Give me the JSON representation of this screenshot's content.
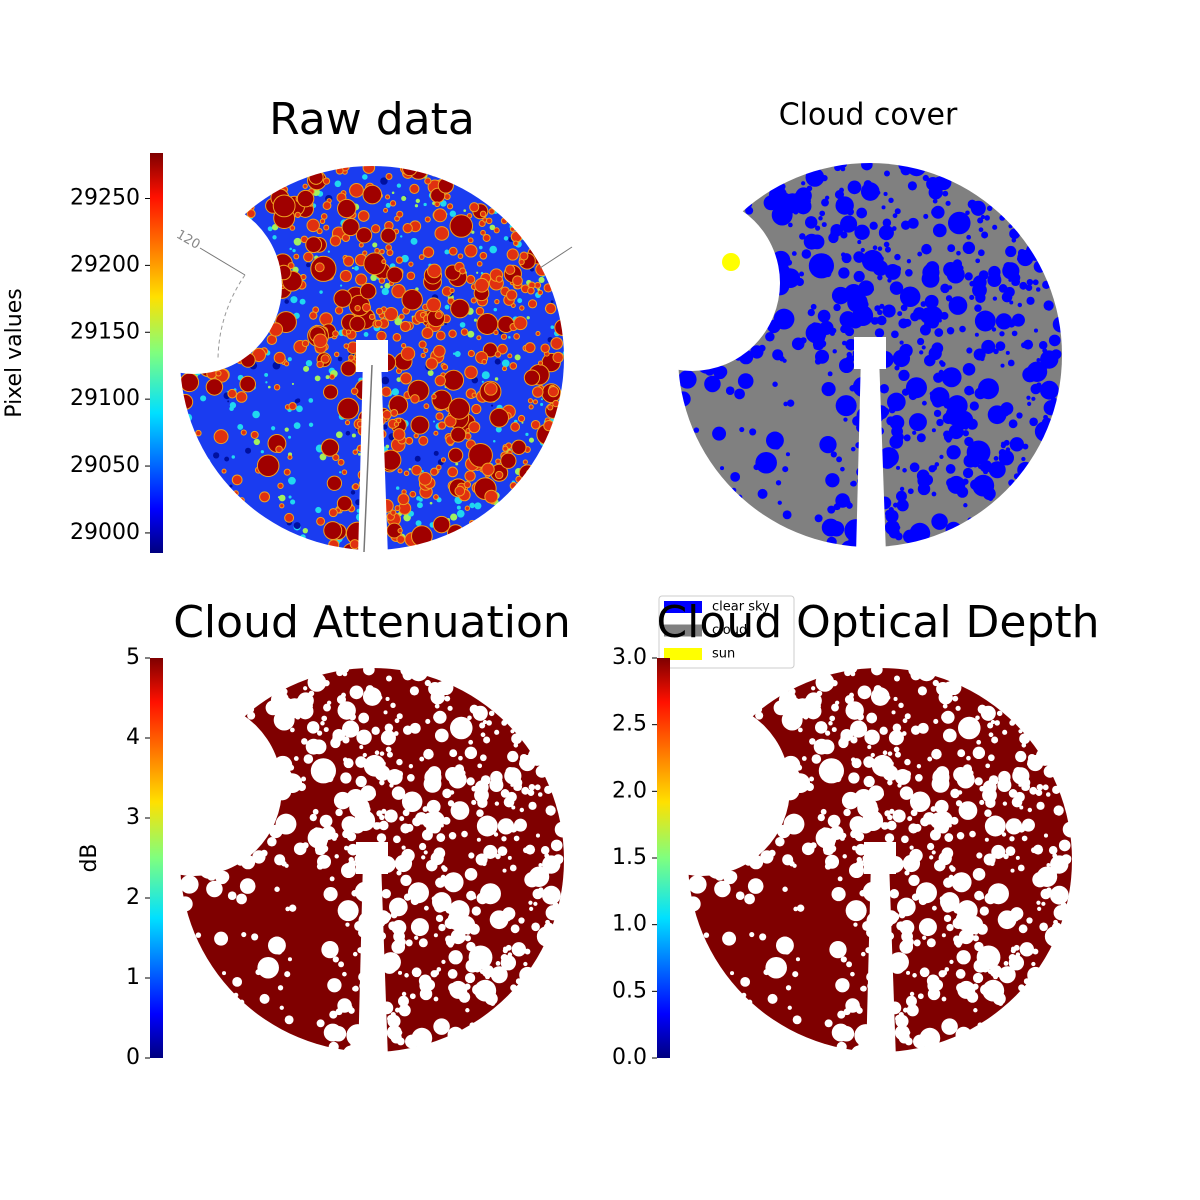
{
  "chart_data": [
    {
      "type": "image",
      "title": "Raw data",
      "ylabel": "Pixel values",
      "colormap": "jet",
      "ylim": [
        28985,
        29284
      ],
      "yticks": [
        29000,
        29050,
        29100,
        29150,
        29200,
        29250
      ],
      "annotations": [
        "120"
      ]
    },
    {
      "type": "image",
      "title": "Cloud cover",
      "series": [
        {
          "name": "clear sky",
          "color": "#0000ff"
        },
        {
          "name": "cloud",
          "color": "#808080"
        },
        {
          "name": "sun",
          "color": "#ffff00"
        }
      ]
    },
    {
      "type": "image",
      "title": "Cloud Attenuation",
      "ylabel": "dB",
      "colormap": "jet",
      "ylim": [
        0,
        5
      ],
      "yticks": [
        0,
        1,
        2,
        3,
        4,
        5
      ]
    },
    {
      "type": "image",
      "title": "Cloud Optical Depth",
      "colormap": "jet",
      "ylim": [
        0,
        3
      ],
      "yticks": [
        {
          "value": 0,
          "label": "0.0"
        },
        0.5,
        {
          "value": 1,
          "label": "1.0"
        },
        1.5,
        {
          "value": 2,
          "label": "2.0"
        },
        2.5,
        {
          "value": 3,
          "label": "3.0"
        }
      ]
    }
  ]
}
